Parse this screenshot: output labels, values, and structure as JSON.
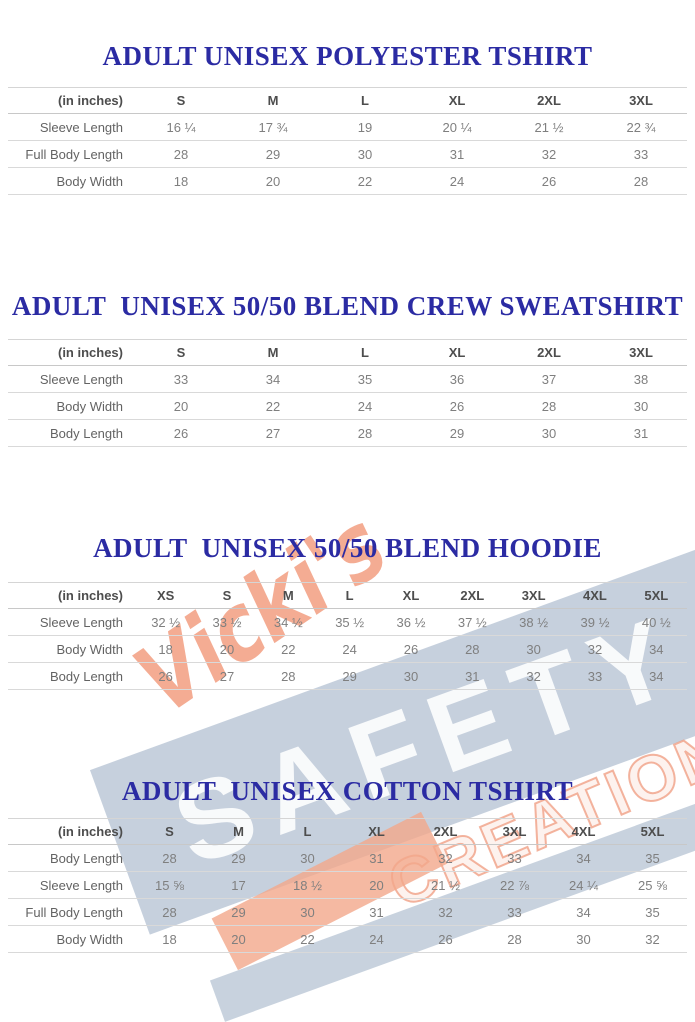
{
  "colors": {
    "title_blue": "#2b2ba3",
    "size_header_text": "#4d4d4d",
    "row_label_text": "#636363",
    "value_text": "#7f7f7f",
    "divider_line": "#d9d9d9",
    "watermark_coral": "#f09778",
    "watermark_band_blue": "#92a5bd",
    "watermark_letter_white": "#ffffff"
  },
  "watermark": {
    "script_text": "Vicki's",
    "band_text": "SAFETY",
    "outline_text": "CREATIONS"
  },
  "tables": [
    {
      "title": "ADULT UNISEX POLYESTER TSHIRT",
      "unit_label": "(in inches)",
      "sizes": [
        "S",
        "M",
        "L",
        "XL",
        "2XL",
        "3XL"
      ],
      "rows": [
        {
          "label": "Sleeve Length",
          "values": [
            "16 ¼",
            "17 ¾",
            "19",
            "20 ¼",
            "21 ½",
            "22 ¾"
          ]
        },
        {
          "label": "Full Body Length",
          "values": [
            "28",
            "29",
            "30",
            "31",
            "32",
            "33"
          ]
        },
        {
          "label": "Body Width",
          "values": [
            "18",
            "20",
            "22",
            "24",
            "26",
            "28"
          ]
        }
      ]
    },
    {
      "title": "ADULT  UNISEX 50/50 BLEND CREW SWEATSHIRT",
      "unit_label": "(in inches)",
      "sizes": [
        "S",
        "M",
        "L",
        "XL",
        "2XL",
        "3XL"
      ],
      "rows": [
        {
          "label": "Sleeve Length",
          "values": [
            "33",
            "34",
            "35",
            "36",
            "37",
            "38"
          ]
        },
        {
          "label": "Body Width",
          "values": [
            "20",
            "22",
            "24",
            "26",
            "28",
            "30"
          ]
        },
        {
          "label": "Body Length",
          "values": [
            "26",
            "27",
            "28",
            "29",
            "30",
            "31"
          ]
        }
      ]
    },
    {
      "title": "ADULT  UNISEX 50/50 BLEND HOODIE",
      "unit_label": "(in inches)",
      "sizes": [
        "XS",
        "S",
        "M",
        "L",
        "XL",
        "2XL",
        "3XL",
        "4XL",
        "5XL"
      ],
      "rows": [
        {
          "label": "Sleeve Length",
          "values": [
            "32 ½",
            "33 ½",
            "34 ½",
            "35 ½",
            "36 ½",
            "37 ½",
            "38 ½",
            "39 ½",
            "40 ½"
          ]
        },
        {
          "label": "Body Width",
          "values": [
            "18",
            "20",
            "22",
            "24",
            "26",
            "28",
            "30",
            "32",
            "34"
          ]
        },
        {
          "label": "Body Length",
          "values": [
            "26",
            "27",
            "28",
            "29",
            "30",
            "31",
            "32",
            "33",
            "34"
          ]
        }
      ]
    },
    {
      "title": "ADULT  UNISEX COTTON TSHIRT",
      "unit_label": "(in inches)",
      "sizes": [
        "S",
        "M",
        "L",
        "XL",
        "2XL",
        "3XL",
        "4XL",
        "5XL"
      ],
      "rows": [
        {
          "label": "Body Length",
          "values": [
            "28",
            "29",
            "30",
            "31",
            "32",
            "33",
            "34",
            "35"
          ]
        },
        {
          "label": "Sleeve Length",
          "values": [
            "15 ⅝",
            "17",
            "18 ½",
            "20",
            "21 ½",
            "22 ⅞",
            "24 ¼",
            "25 ⅝"
          ]
        },
        {
          "label": "Full Body Length",
          "values": [
            "28",
            "29",
            "30",
            "31",
            "32",
            "33",
            "34",
            "35"
          ]
        },
        {
          "label": "Body Width",
          "values": [
            "18",
            "20",
            "22",
            "24",
            "26",
            "28",
            "30",
            "32"
          ]
        }
      ]
    }
  ]
}
